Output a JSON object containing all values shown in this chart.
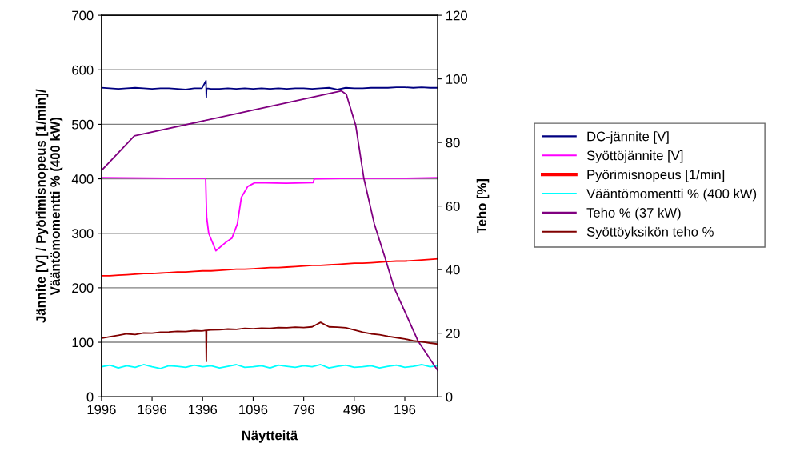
{
  "chart_data": {
    "type": "line",
    "xlabel": "Näytteitä",
    "ylabel": "Jännite [V] / Pyörimisnopeus [1/min]/\nVääntömomentti % (400 kW)",
    "y2label": "Teho [%]",
    "x": [
      1996,
      1946,
      1896,
      1846,
      1796,
      1746,
      1696,
      1646,
      1596,
      1546,
      1496,
      1446,
      1396,
      1346,
      1296,
      1246,
      1196,
      1146,
      1096,
      1046,
      996,
      946,
      896,
      846,
      796,
      746,
      696,
      646,
      596,
      546,
      496,
      446,
      396,
      346,
      296,
      246,
      196,
      146,
      96,
      46,
      1
    ],
    "xlim": [
      1996,
      1
    ],
    "xticks": [
      1996,
      1696,
      1396,
      1096,
      796,
      496,
      196
    ],
    "ylim": [
      0,
      700
    ],
    "yticks": [
      0,
      100,
      200,
      300,
      400,
      500,
      600,
      700
    ],
    "y2lim": [
      0,
      120
    ],
    "y2ticks": [
      0,
      20,
      40,
      60,
      80,
      100,
      120
    ],
    "grid": "y",
    "legend": "right",
    "line_style": "solid",
    "marker": "none",
    "series": [
      {
        "name": "DC-jännite [V]",
        "color": "#000080",
        "x": [
          1996,
          1946,
          1896,
          1846,
          1796,
          1746,
          1696,
          1646,
          1596,
          1546,
          1496,
          1446,
          1400,
          1376,
          1374,
          1372,
          1346,
          1296,
          1246,
          1196,
          1146,
          1096,
          1046,
          996,
          946,
          896,
          846,
          796,
          746,
          696,
          646,
          596,
          546,
          496,
          446,
          396,
          346,
          296,
          246,
          196,
          146,
          96,
          46,
          1
        ],
        "values": [
          567,
          566,
          565,
          566,
          567,
          566,
          565,
          566,
          566,
          565,
          564,
          566,
          566,
          580,
          550,
          566,
          565,
          565,
          566,
          565,
          566,
          565,
          566,
          565,
          566,
          565,
          566,
          566,
          565,
          566,
          567,
          564,
          567,
          566,
          566,
          567,
          567,
          567,
          568,
          568,
          567,
          568,
          567,
          567
        ]
      },
      {
        "name": "Syöttöjännite [V]",
        "color": "#ff00ff",
        "x": [
          1996,
          1600,
          1400,
          1378,
          1372,
          1360,
          1317,
          1260,
          1222,
          1190,
          1166,
          1128,
          1085,
          900,
          740,
          733,
          500,
          200,
          1
        ],
        "values": [
          402,
          401,
          401,
          401,
          330,
          300,
          268,
          283,
          291,
          317,
          366,
          386,
          393,
          392,
          393,
          400,
          401,
          401,
          402
        ]
      },
      {
        "name": "Pyörimisnopeus [1/min]",
        "color": "#ff0000",
        "values": [
          222,
          222,
          223,
          224,
          225,
          226,
          226,
          227,
          228,
          229,
          229,
          230,
          231,
          231,
          232,
          233,
          234,
          234,
          235,
          236,
          237,
          237,
          238,
          239,
          240,
          241,
          241,
          242,
          243,
          244,
          245,
          245,
          246,
          247,
          248,
          249,
          249,
          250,
          251,
          252,
          253
        ]
      },
      {
        "name": "Vääntömomentti % (400 kW)",
        "color": "#00ffff",
        "values": [
          55,
          58,
          53,
          57,
          54,
          59,
          55,
          52,
          57,
          56,
          54,
          58,
          55,
          57,
          53,
          56,
          59,
          54,
          55,
          57,
          53,
          58,
          56,
          54,
          57,
          55,
          59,
          53,
          56,
          58,
          54,
          55,
          57,
          53,
          56,
          58,
          54,
          56,
          59,
          55,
          57
        ]
      },
      {
        "name": "Teho % (37 kW)",
        "color": "#800080",
        "axis": "y2",
        "x": [
          1996,
          1801,
          1200,
          572,
          543,
          487,
          439,
          377,
          306,
          259,
          116,
          1
        ],
        "values": [
          71.2,
          82.1,
          89.0,
          96.2,
          95.1,
          85.3,
          68.7,
          54.4,
          42.5,
          34.2,
          17.4,
          8.3
        ]
      },
      {
        "name": "Syöttöyksikön teho %",
        "color": "#800000",
        "axis": "y2",
        "x": [
          1996,
          1946,
          1896,
          1846,
          1796,
          1746,
          1696,
          1646,
          1596,
          1546,
          1496,
          1446,
          1400,
          1376,
          1374,
          1372,
          1346,
          1296,
          1246,
          1196,
          1146,
          1096,
          1046,
          996,
          946,
          896,
          846,
          796,
          746,
          696,
          646,
          596,
          546,
          496,
          446,
          396,
          346,
          296,
          246,
          196,
          146,
          96,
          46,
          1
        ],
        "values": [
          18.4,
          18.9,
          19.3,
          19.8,
          19.6,
          20.1,
          20.0,
          20.3,
          20.4,
          20.6,
          20.5,
          20.8,
          20.7,
          20.9,
          11.1,
          20.9,
          21.0,
          21.1,
          21.3,
          21.2,
          21.5,
          21.4,
          21.6,
          21.5,
          21.8,
          21.7,
          21.9,
          21.8,
          22.0,
          23.4,
          22.0,
          21.9,
          21.7,
          21.0,
          20.3,
          19.8,
          19.5,
          19.0,
          18.6,
          18.2,
          17.6,
          17.3,
          16.9,
          16.6
        ]
      }
    ]
  }
}
